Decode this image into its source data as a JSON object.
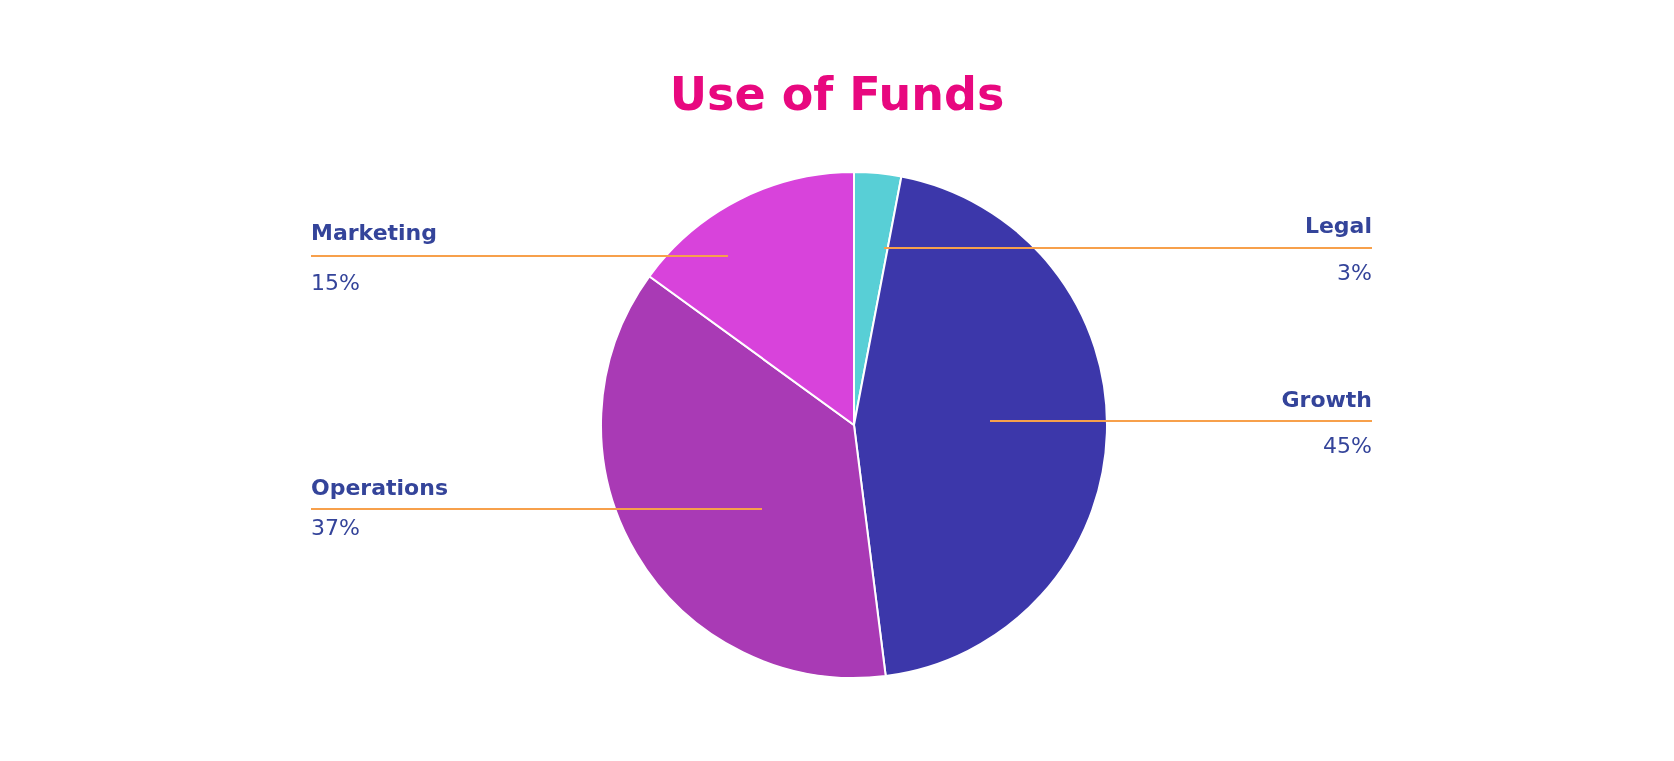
{
  "chart_data": {
    "type": "pie",
    "title": "Use of Funds",
    "categories": [
      "Legal",
      "Growth",
      "Operations",
      "Marketing"
    ],
    "values": [
      3,
      45,
      37,
      15
    ],
    "colors": [
      "#58cfd6",
      "#3c37aa",
      "#a93ab5",
      "#d843db"
    ],
    "value_labels": [
      "3%",
      "45%",
      "37%",
      "15%"
    ],
    "legend": false
  }
}
